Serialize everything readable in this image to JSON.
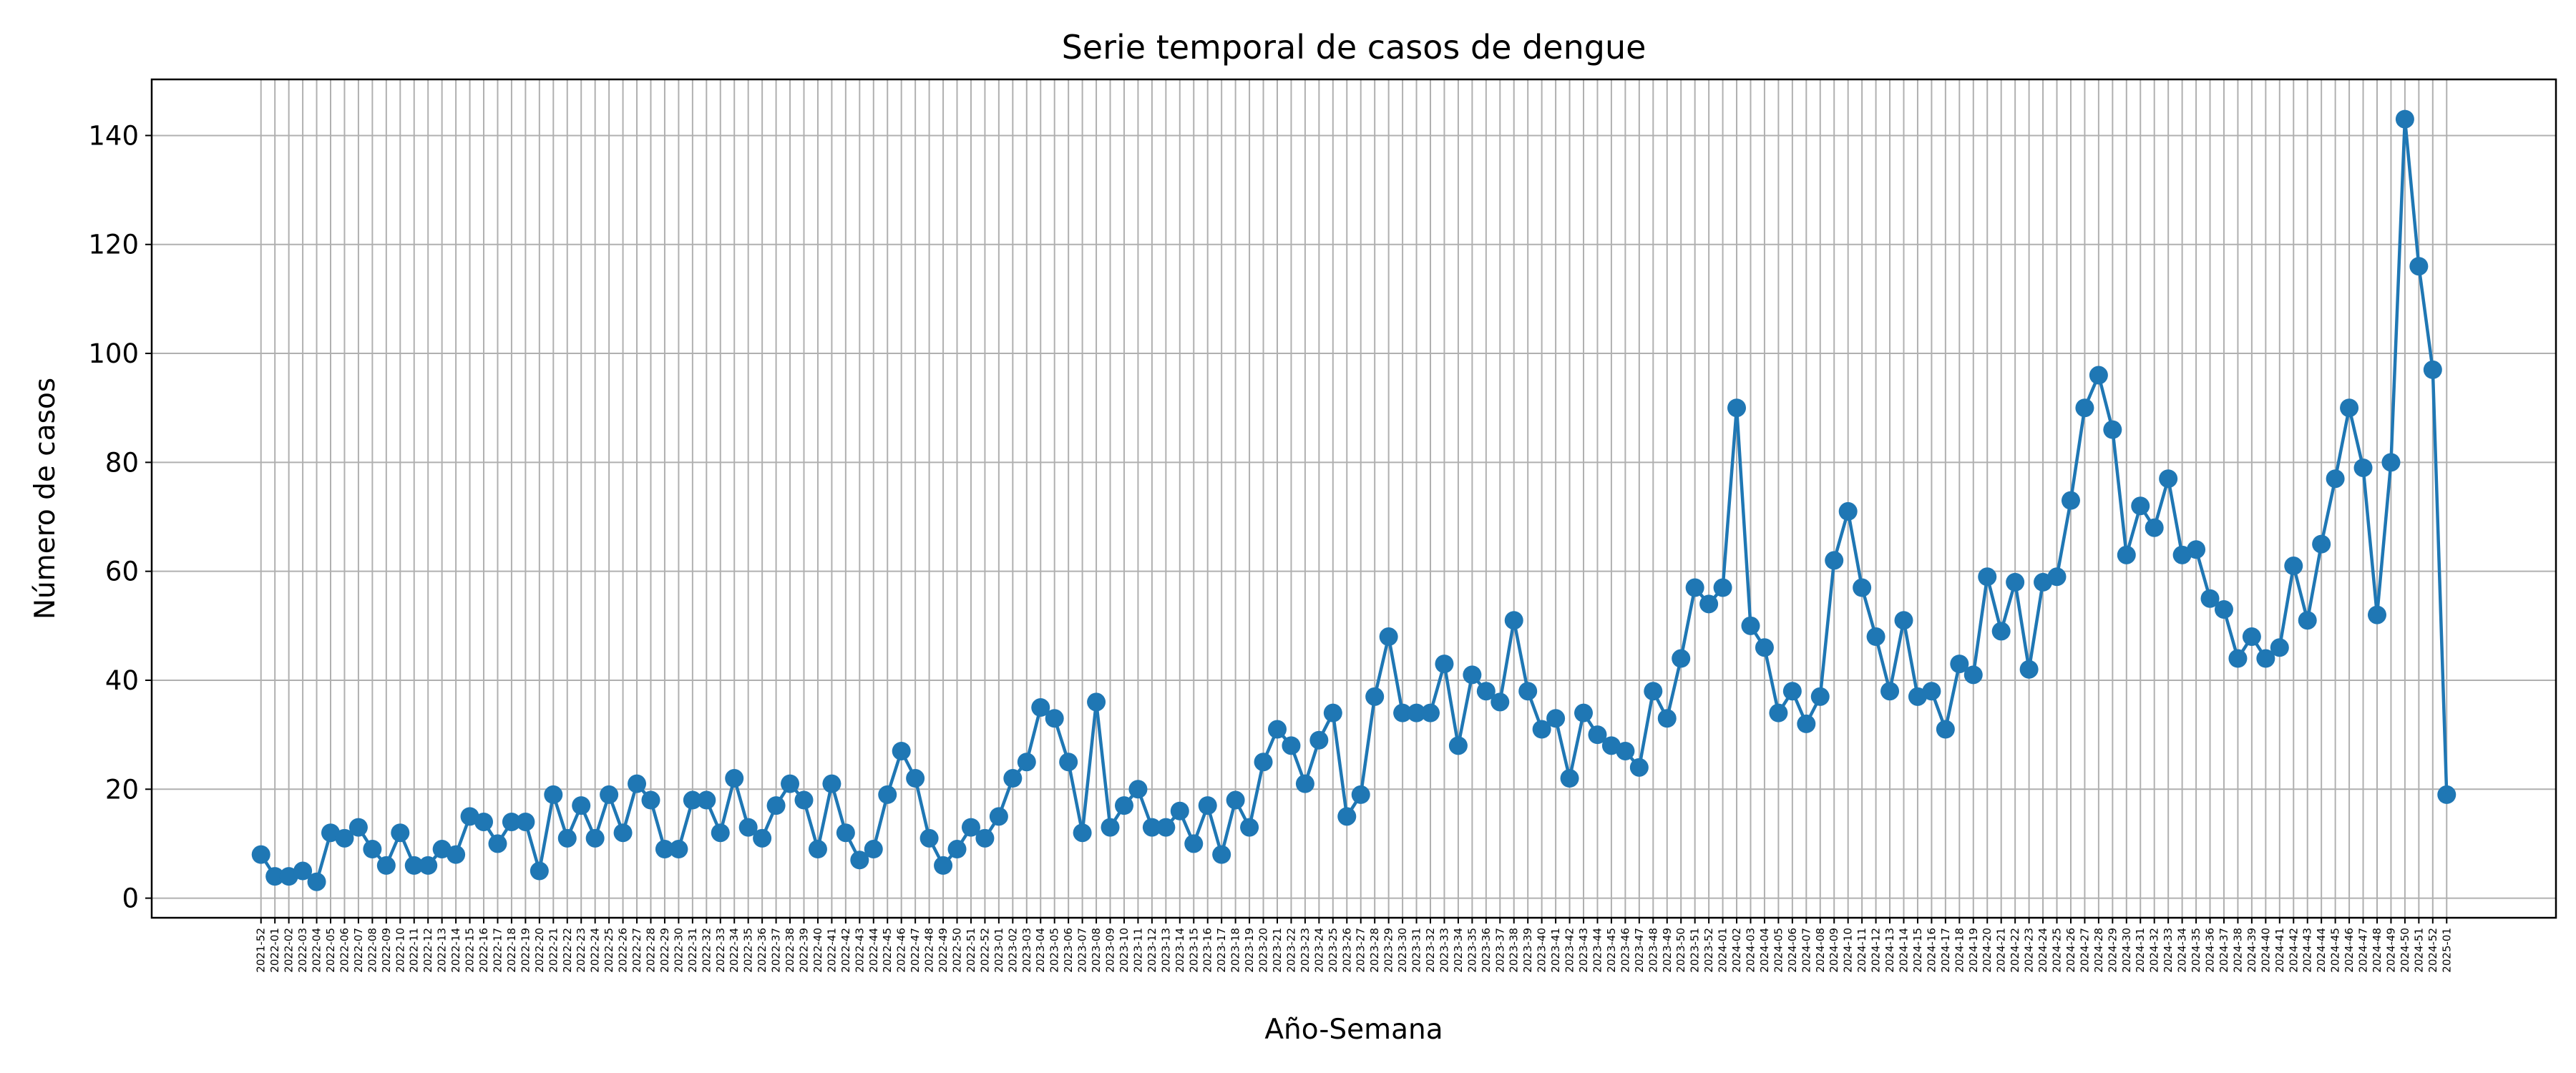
{
  "chart_data": {
    "type": "line",
    "title": "Serie temporal de casos de dengue",
    "x_label": "Año-Semana",
    "y_label": "Número de casos",
    "categories": [
      "2021-52",
      "2022-01",
      "2022-02",
      "2022-03",
      "2022-04",
      "2022-05",
      "2022-06",
      "2022-07",
      "2022-08",
      "2022-09",
      "2022-10",
      "2022-11",
      "2022-12",
      "2022-13",
      "2022-14",
      "2022-15",
      "2022-16",
      "2022-17",
      "2022-18",
      "2022-19",
      "2022-20",
      "2022-21",
      "2022-22",
      "2022-23",
      "2022-24",
      "2022-25",
      "2022-26",
      "2022-27",
      "2022-28",
      "2022-29",
      "2022-30",
      "2022-31",
      "2022-32",
      "2022-33",
      "2022-34",
      "2022-35",
      "2022-36",
      "2022-37",
      "2022-38",
      "2022-39",
      "2022-40",
      "2022-41",
      "2022-42",
      "2022-43",
      "2022-44",
      "2022-45",
      "2022-46",
      "2022-47",
      "2022-48",
      "2022-49",
      "2022-50",
      "2022-51",
      "2022-52",
      "2023-01",
      "2023-02",
      "2023-03",
      "2023-04",
      "2023-05",
      "2023-06",
      "2023-07",
      "2023-08",
      "2023-09",
      "2023-10",
      "2023-11",
      "2023-12",
      "2023-13",
      "2023-14",
      "2023-15",
      "2023-16",
      "2023-17",
      "2023-18",
      "2023-19",
      "2023-20",
      "2023-21",
      "2023-22",
      "2023-23",
      "2023-24",
      "2023-25",
      "2023-26",
      "2023-27",
      "2023-28",
      "2023-29",
      "2023-30",
      "2023-31",
      "2023-32",
      "2023-33",
      "2023-34",
      "2023-35",
      "2023-36",
      "2023-37",
      "2023-38",
      "2023-39",
      "2023-40",
      "2023-41",
      "2023-42",
      "2023-43",
      "2023-44",
      "2023-45",
      "2023-46",
      "2023-47",
      "2023-48",
      "2023-49",
      "2023-50",
      "2023-51",
      "2023-52",
      "2024-01",
      "2024-02",
      "2024-03",
      "2024-04",
      "2024-05",
      "2024-06",
      "2024-07",
      "2024-08",
      "2024-09",
      "2024-10",
      "2024-11",
      "2024-12",
      "2024-13",
      "2024-14",
      "2024-15",
      "2024-16",
      "2024-17",
      "2024-18",
      "2024-19",
      "2024-20",
      "2024-21",
      "2024-22",
      "2024-23",
      "2024-24",
      "2024-25",
      "2024-26",
      "2024-27",
      "2024-28",
      "2024-29",
      "2024-30",
      "2024-31",
      "2024-32",
      "2024-33",
      "2024-34",
      "2024-35",
      "2024-36",
      "2024-37",
      "2024-38",
      "2024-39",
      "2024-40",
      "2024-41",
      "2024-42",
      "2024-43",
      "2024-44",
      "2024-45",
      "2024-46",
      "2024-47",
      "2024-48",
      "2024-49",
      "2024-50",
      "2024-51",
      "2024-52",
      "2025-01"
    ],
    "values": [
      8,
      4,
      4,
      5,
      3,
      12,
      11,
      13,
      9,
      6,
      12,
      6,
      6,
      9,
      8,
      15,
      14,
      10,
      14,
      14,
      5,
      19,
      11,
      17,
      11,
      19,
      12,
      21,
      18,
      9,
      9,
      18,
      18,
      12,
      22,
      13,
      11,
      17,
      21,
      18,
      9,
      21,
      12,
      7,
      9,
      19,
      27,
      22,
      11,
      6,
      9,
      13,
      11,
      15,
      22,
      25,
      35,
      33,
      25,
      12,
      36,
      13,
      17,
      20,
      13,
      13,
      16,
      10,
      17,
      8,
      18,
      13,
      25,
      31,
      28,
      21,
      29,
      34,
      15,
      19,
      37,
      48,
      34,
      34,
      34,
      43,
      28,
      41,
      38,
      36,
      51,
      38,
      31,
      33,
      22,
      34,
      30,
      28,
      27,
      24,
      38,
      33,
      44,
      57,
      54,
      57,
      90,
      50,
      46,
      34,
      38,
      32,
      37,
      62,
      71,
      57,
      48,
      38,
      51,
      37,
      38,
      31,
      43,
      41,
      59,
      49,
      58,
      42,
      58,
      59,
      73,
      90,
      96,
      86,
      63,
      72,
      68,
      77,
      63,
      64,
      55,
      53,
      44,
      48,
      44,
      46,
      61,
      51,
      65,
      77,
      90,
      79,
      52,
      80,
      143,
      116,
      97,
      19
    ],
    "color": "#1f77b4",
    "ylim": [
      -3.6,
      150.3
    ],
    "yticks": [
      0,
      20,
      40,
      60,
      80,
      100,
      120,
      140
    ],
    "grid": true
  }
}
